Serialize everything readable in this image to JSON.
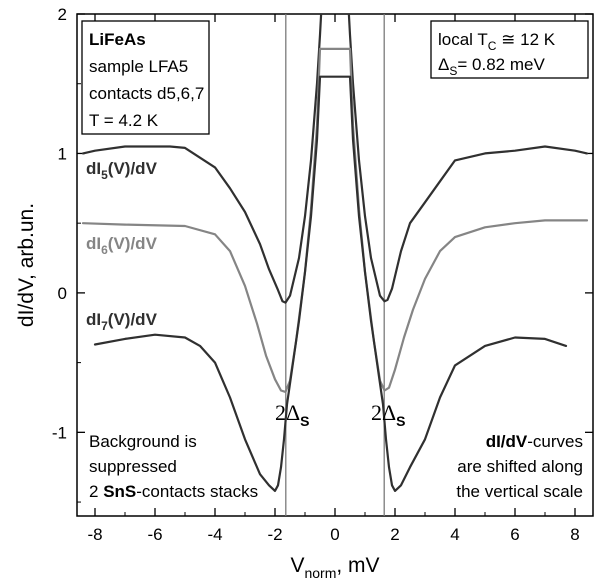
{
  "chart_data": {
    "type": "line",
    "xlabel_main": "V",
    "xlabel_sub": "norm",
    "xlabel_tail": ", mV",
    "ylabel": "dI/dV, arb.un.",
    "xlim": [
      -8.6,
      8.6
    ],
    "ylim": [
      -1.6,
      2.0
    ],
    "x_ticks": [
      -8,
      -6,
      -4,
      -2,
      0,
      2,
      4,
      6,
      8
    ],
    "x_tick_labels": [
      "-8",
      "-6",
      "-4",
      "-2",
      "0",
      "2",
      "4",
      "6",
      "8"
    ],
    "y_ticks": [
      -1,
      0,
      1,
      2
    ],
    "y_tick_labels": [
      "-1",
      "0",
      "1",
      "2"
    ],
    "grid": false,
    "vertical_markers": [
      -1.64,
      1.64
    ],
    "series": [
      {
        "name_main": "dI",
        "name_sub": "5",
        "name_tail": "(V)/dV",
        "color": "#303030",
        "x": [
          -8.4,
          -8.0,
          -7.0,
          -6.0,
          -5.5,
          -5.0,
          -4.0,
          -3.5,
          -3.0,
          -2.5,
          -2.2,
          -1.9,
          -1.75,
          -1.65,
          -1.5,
          -1.2,
          -1.0,
          -0.8,
          -0.6,
          -0.5,
          -0.45,
          0.45,
          0.5,
          0.6,
          0.8,
          1.0,
          1.2,
          1.5,
          1.65,
          1.75,
          1.9,
          2.2,
          2.5,
          3.0,
          3.5,
          4.0,
          5.0,
          6.0,
          7.0,
          8.0,
          8.4
        ],
        "y": [
          1.0,
          1.02,
          1.05,
          1.05,
          1.05,
          1.04,
          0.9,
          0.75,
          0.58,
          0.35,
          0.17,
          0.02,
          -0.06,
          -0.07,
          -0.02,
          0.25,
          0.55,
          0.95,
          1.5,
          1.85,
          2.05,
          2.05,
          1.85,
          1.5,
          0.95,
          0.55,
          0.25,
          -0.02,
          -0.06,
          -0.05,
          0.03,
          0.3,
          0.5,
          0.65,
          0.8,
          0.95,
          1.0,
          1.02,
          1.05,
          1.02,
          1.0
        ]
      },
      {
        "name_main": "dI",
        "name_sub": "6",
        "name_tail": "(V)/dV",
        "color": "#858585",
        "x": [
          -8.4,
          -7.0,
          -5.0,
          -4.0,
          -3.5,
          -3.0,
          -2.6,
          -2.3,
          -2.0,
          -1.8,
          -1.65,
          -1.5,
          -1.3,
          -1.0,
          -0.8,
          -0.6,
          -0.5,
          0.5,
          0.6,
          0.8,
          1.0,
          1.3,
          1.5,
          1.65,
          1.8,
          2.0,
          2.3,
          2.6,
          3.0,
          3.5,
          4.0,
          5.0,
          6.0,
          7.0,
          8.4
        ],
        "y": [
          0.5,
          0.49,
          0.48,
          0.42,
          0.3,
          0.05,
          -0.22,
          -0.45,
          -0.62,
          -0.7,
          -0.71,
          -0.63,
          -0.35,
          0.15,
          0.6,
          1.2,
          1.75,
          1.75,
          1.2,
          0.6,
          0.15,
          -0.35,
          -0.63,
          -0.7,
          -0.68,
          -0.55,
          -0.32,
          -0.12,
          0.1,
          0.3,
          0.4,
          0.47,
          0.5,
          0.52,
          0.52
        ]
      },
      {
        "name_main": "dI",
        "name_sub": "7",
        "name_tail": "(V)/dV",
        "color": "#303030",
        "x": [
          -8.0,
          -7.0,
          -6.0,
          -5.0,
          -4.5,
          -4.0,
          -3.5,
          -3.0,
          -2.5,
          -2.2,
          -2.0,
          -1.9,
          -1.8,
          -1.7,
          -1.6,
          -1.4,
          -1.2,
          -1.0,
          -0.8,
          -0.6,
          -0.5,
          0.5,
          0.6,
          0.8,
          1.0,
          1.2,
          1.4,
          1.6,
          1.7,
          1.8,
          1.9,
          2.0,
          2.2,
          2.5,
          3.0,
          3.5,
          4.0,
          5.0,
          6.0,
          7.0,
          7.7
        ],
        "y": [
          -0.37,
          -0.33,
          -0.3,
          -0.32,
          -0.38,
          -0.5,
          -0.75,
          -1.05,
          -1.3,
          -1.38,
          -1.42,
          -1.38,
          -1.25,
          -1.05,
          -0.8,
          -0.5,
          -0.2,
          0.15,
          0.55,
          1.1,
          1.55,
          1.55,
          1.1,
          0.55,
          0.15,
          -0.2,
          -0.5,
          -0.8,
          -1.05,
          -1.25,
          -1.38,
          -1.42,
          -1.38,
          -1.25,
          -1.05,
          -0.75,
          -0.52,
          -0.38,
          -0.32,
          -0.33,
          -0.38
        ]
      }
    ],
    "series_label_colors": [
      "#303030",
      "#858585",
      "#303030"
    ],
    "legend_box": {
      "line1": "LiFeAs",
      "line2": "sample LFA5",
      "line3": "contacts d5,6,7",
      "line4": "T = 4.2 K"
    },
    "info_box": {
      "line1_main": "local T",
      "line1_sub": "C",
      "line1_tail": " ≅ 12 K",
      "line2_main": "Δ",
      "line2_sub": "S",
      "line2_tail": "= 0.82 meV"
    },
    "gap_label_main": "2Δ",
    "gap_label_sub": "S",
    "annotation_left": {
      "line1": "Background is",
      "line2": "suppressed",
      "line3_pre": "2 ",
      "line3_bold": "SnS",
      "line3_tail": "-contacts stacks"
    },
    "annotation_right": {
      "line1_bold": "dI/dV",
      "line1_tail": "-curves",
      "line2": "are shifted along",
      "line3": "the vertical scale"
    }
  }
}
